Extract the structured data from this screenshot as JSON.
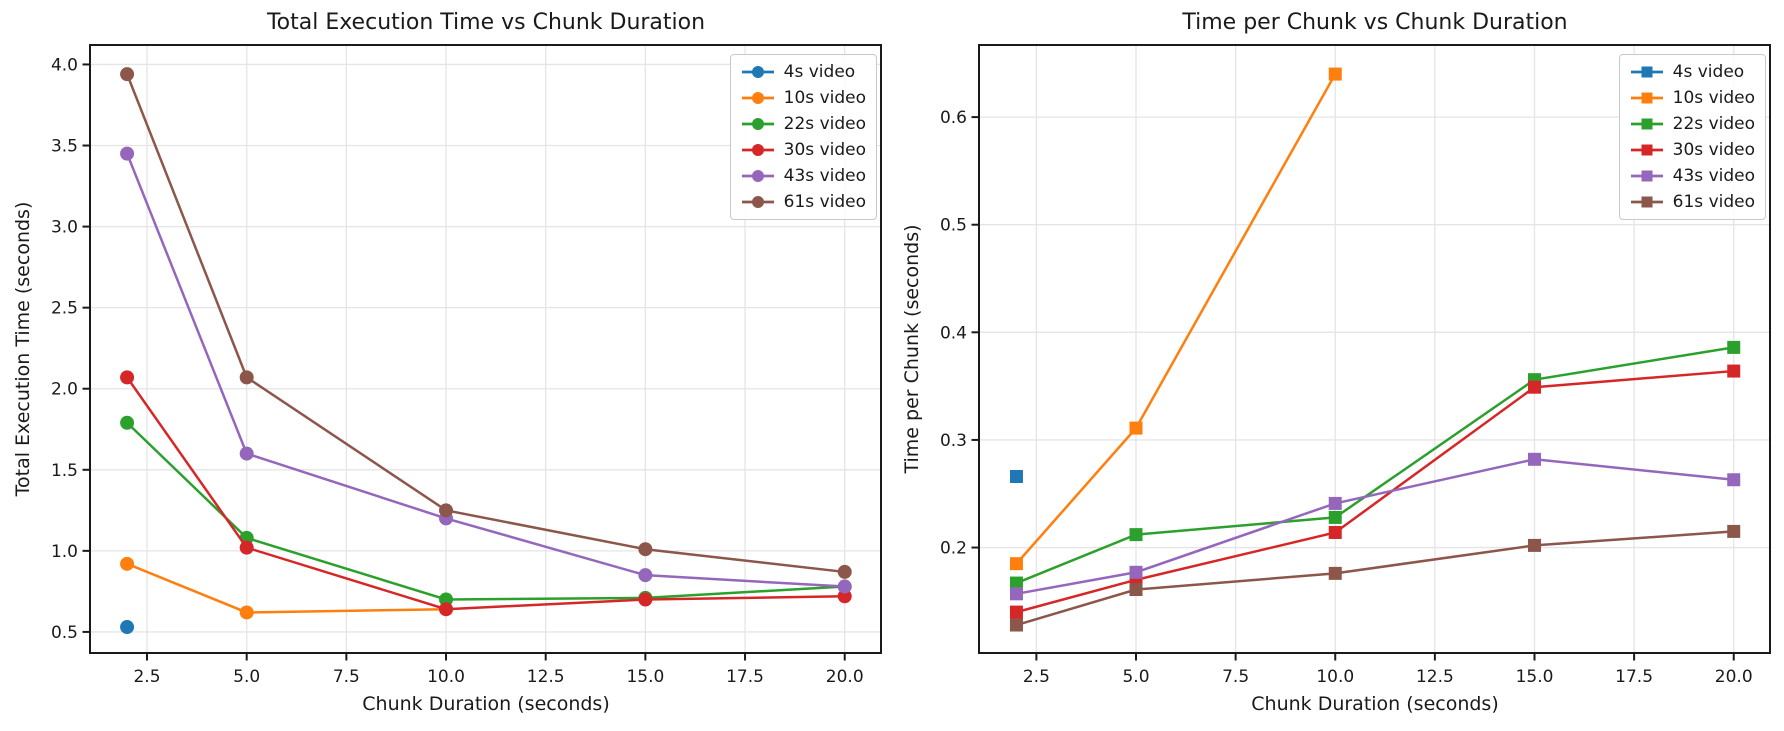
{
  "figure": {
    "background": "#ffffff"
  },
  "chart_data": [
    {
      "type": "line",
      "title": "Total Execution Time vs Chunk Duration",
      "xlabel": "Chunk Duration (seconds)",
      "ylabel": "Total Execution Time (seconds)",
      "marker": "circle",
      "grid": true,
      "legend_position": "upper right",
      "xlim": [
        1.07,
        20.91
      ],
      "ylim": [
        0.37,
        4.12
      ],
      "xticks": [
        2.5,
        5.0,
        7.5,
        10.0,
        12.5,
        15.0,
        17.5,
        20.0
      ],
      "xtick_labels": [
        "2.5",
        "5.0",
        "7.5",
        "10.0",
        "12.5",
        "15.0",
        "17.5",
        "20.0"
      ],
      "yticks": [
        0.5,
        1.0,
        1.5,
        2.0,
        2.5,
        3.0,
        3.5,
        4.0
      ],
      "ytick_labels": [
        "0.5",
        "1.0",
        "1.5",
        "2.0",
        "2.5",
        "3.0",
        "3.5",
        "4.0"
      ],
      "series": [
        {
          "name": "4s video",
          "color": "#1f77b4",
          "x": [
            2
          ],
          "y": [
            0.53
          ]
        },
        {
          "name": "10s video",
          "color": "#ff7f0e",
          "x": [
            2,
            5,
            10
          ],
          "y": [
            0.92,
            0.62,
            0.64
          ]
        },
        {
          "name": "22s video",
          "color": "#2ca02c",
          "x": [
            2,
            5,
            10,
            15,
            20
          ],
          "y": [
            1.79,
            1.08,
            0.7,
            0.71,
            0.78
          ]
        },
        {
          "name": "30s video",
          "color": "#d62728",
          "x": [
            2,
            5,
            10,
            15,
            20
          ],
          "y": [
            2.07,
            1.02,
            0.64,
            0.7,
            0.72
          ]
        },
        {
          "name": "43s video",
          "color": "#9467bd",
          "x": [
            2,
            5,
            10,
            15,
            20
          ],
          "y": [
            3.45,
            1.6,
            1.2,
            0.85,
            0.78
          ]
        },
        {
          "name": "61s video",
          "color": "#8c564b",
          "x": [
            2,
            5,
            10,
            15,
            20
          ],
          "y": [
            3.94,
            2.07,
            1.25,
            1.01,
            0.87
          ]
        }
      ]
    },
    {
      "type": "line",
      "title": "Time per Chunk vs Chunk Duration",
      "xlabel": "Chunk Duration (seconds)",
      "ylabel": "Time per Chunk (seconds)",
      "marker": "square",
      "grid": true,
      "legend_position": "upper right",
      "xlim": [
        1.06,
        20.91
      ],
      "ylim": [
        0.102,
        0.667
      ],
      "xticks": [
        2.5,
        5.0,
        7.5,
        10.0,
        12.5,
        15.0,
        17.5,
        20.0
      ],
      "xtick_labels": [
        "2.5",
        "5.0",
        "7.5",
        "10.0",
        "12.5",
        "15.0",
        "17.5",
        "20.0"
      ],
      "yticks": [
        0.2,
        0.3,
        0.4,
        0.5,
        0.6
      ],
      "ytick_labels": [
        "0.2",
        "0.3",
        "0.4",
        "0.5",
        "0.6"
      ],
      "series": [
        {
          "name": "4s video",
          "color": "#1f77b4",
          "x": [
            2
          ],
          "y": [
            0.266
          ]
        },
        {
          "name": "10s video",
          "color": "#ff7f0e",
          "x": [
            2,
            5,
            10
          ],
          "y": [
            0.185,
            0.311,
            0.64
          ]
        },
        {
          "name": "22s video",
          "color": "#2ca02c",
          "x": [
            2,
            5,
            10,
            15,
            20
          ],
          "y": [
            0.167,
            0.212,
            0.228,
            0.356,
            0.386
          ]
        },
        {
          "name": "30s video",
          "color": "#d62728",
          "x": [
            2,
            5,
            10,
            15,
            20
          ],
          "y": [
            0.14,
            0.17,
            0.214,
            0.349,
            0.364
          ]
        },
        {
          "name": "43s video",
          "color": "#9467bd",
          "x": [
            2,
            5,
            10,
            15,
            20
          ],
          "y": [
            0.157,
            0.177,
            0.241,
            0.282,
            0.263
          ]
        },
        {
          "name": "61s video",
          "color": "#8c564b",
          "x": [
            2,
            5,
            10,
            15,
            20
          ],
          "y": [
            0.128,
            0.161,
            0.176,
            0.202,
            0.215
          ]
        }
      ]
    }
  ],
  "style": {
    "spine_color": "#1a1a1a",
    "grid_color": "#e5e5e5",
    "tick_color": "#1a1a1a",
    "text_color": "#1a1a1a"
  }
}
